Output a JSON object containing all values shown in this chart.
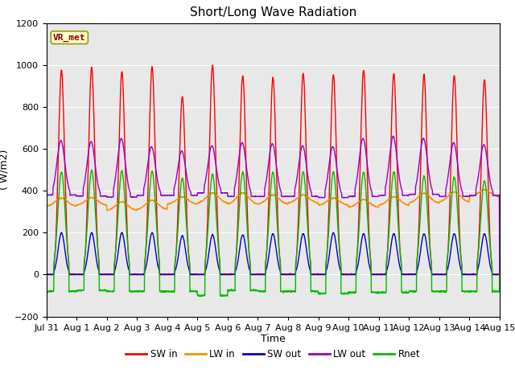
{
  "title": "Short/Long Wave Radiation",
  "ylabel": "( W/m2)",
  "xlabel": "Time",
  "ylim": [
    -200,
    1200
  ],
  "xlim": [
    0,
    15
  ],
  "xtick_labels": [
    "Jul 31",
    "Aug 1",
    "Aug 2",
    "Aug 3",
    "Aug 4",
    "Aug 5",
    "Aug 6",
    "Aug 7",
    "Aug 8",
    "Aug 9",
    "Aug 10",
    "Aug 11",
    "Aug 12",
    "Aug 13",
    "Aug 14",
    "Aug 15"
  ],
  "ytick_values": [
    -200,
    0,
    200,
    400,
    600,
    800,
    1000,
    1200
  ],
  "series_colors": {
    "SW_in": "#ff0000",
    "LW_in": "#ff8c00",
    "SW_out": "#0000cc",
    "LW_out": "#9900cc",
    "Rnet": "#00bb00"
  },
  "legend_labels": [
    "SW in",
    "LW in",
    "SW out",
    "LW out",
    "Rnet"
  ],
  "station_label": "VR_met",
  "fig_bg_color": "#ffffff",
  "plot_bg_color": "#e8e8e8",
  "title_fontsize": 11,
  "label_fontsize": 9,
  "tick_fontsize": 8,
  "n_days": 15,
  "SW_in_peaks": [
    975,
    990,
    968,
    993,
    850,
    1000,
    950,
    940,
    960,
    955,
    975,
    960,
    955,
    950,
    930
  ],
  "LW_in_base": [
    325,
    330,
    305,
    310,
    335,
    340,
    335,
    335,
    340,
    330,
    320,
    330,
    340,
    345,
    370
  ],
  "LW_in_bump": [
    40,
    38,
    42,
    45,
    35,
    50,
    55,
    45,
    40,
    35,
    38,
    42,
    48,
    50,
    35
  ],
  "LW_out_peaks": [
    640,
    635,
    650,
    610,
    590,
    615,
    630,
    625,
    615,
    610,
    650,
    660,
    650,
    630,
    620
  ],
  "LW_out_night": [
    380,
    375,
    370,
    378,
    378,
    390,
    373,
    373,
    373,
    368,
    373,
    378,
    383,
    373,
    378
  ],
  "SW_out_peaks": [
    200,
    200,
    200,
    200,
    185,
    190,
    190,
    195,
    195,
    200,
    195,
    195,
    195,
    195,
    195
  ],
  "Rnet_peaks": [
    490,
    500,
    495,
    495,
    460,
    480,
    490,
    490,
    490,
    490,
    490,
    490,
    470,
    465,
    450
  ],
  "Rnet_night": [
    -80,
    -75,
    -80,
    -80,
    -80,
    -100,
    -75,
    -80,
    -80,
    -90,
    -85,
    -85,
    -80,
    -80,
    -80
  ]
}
